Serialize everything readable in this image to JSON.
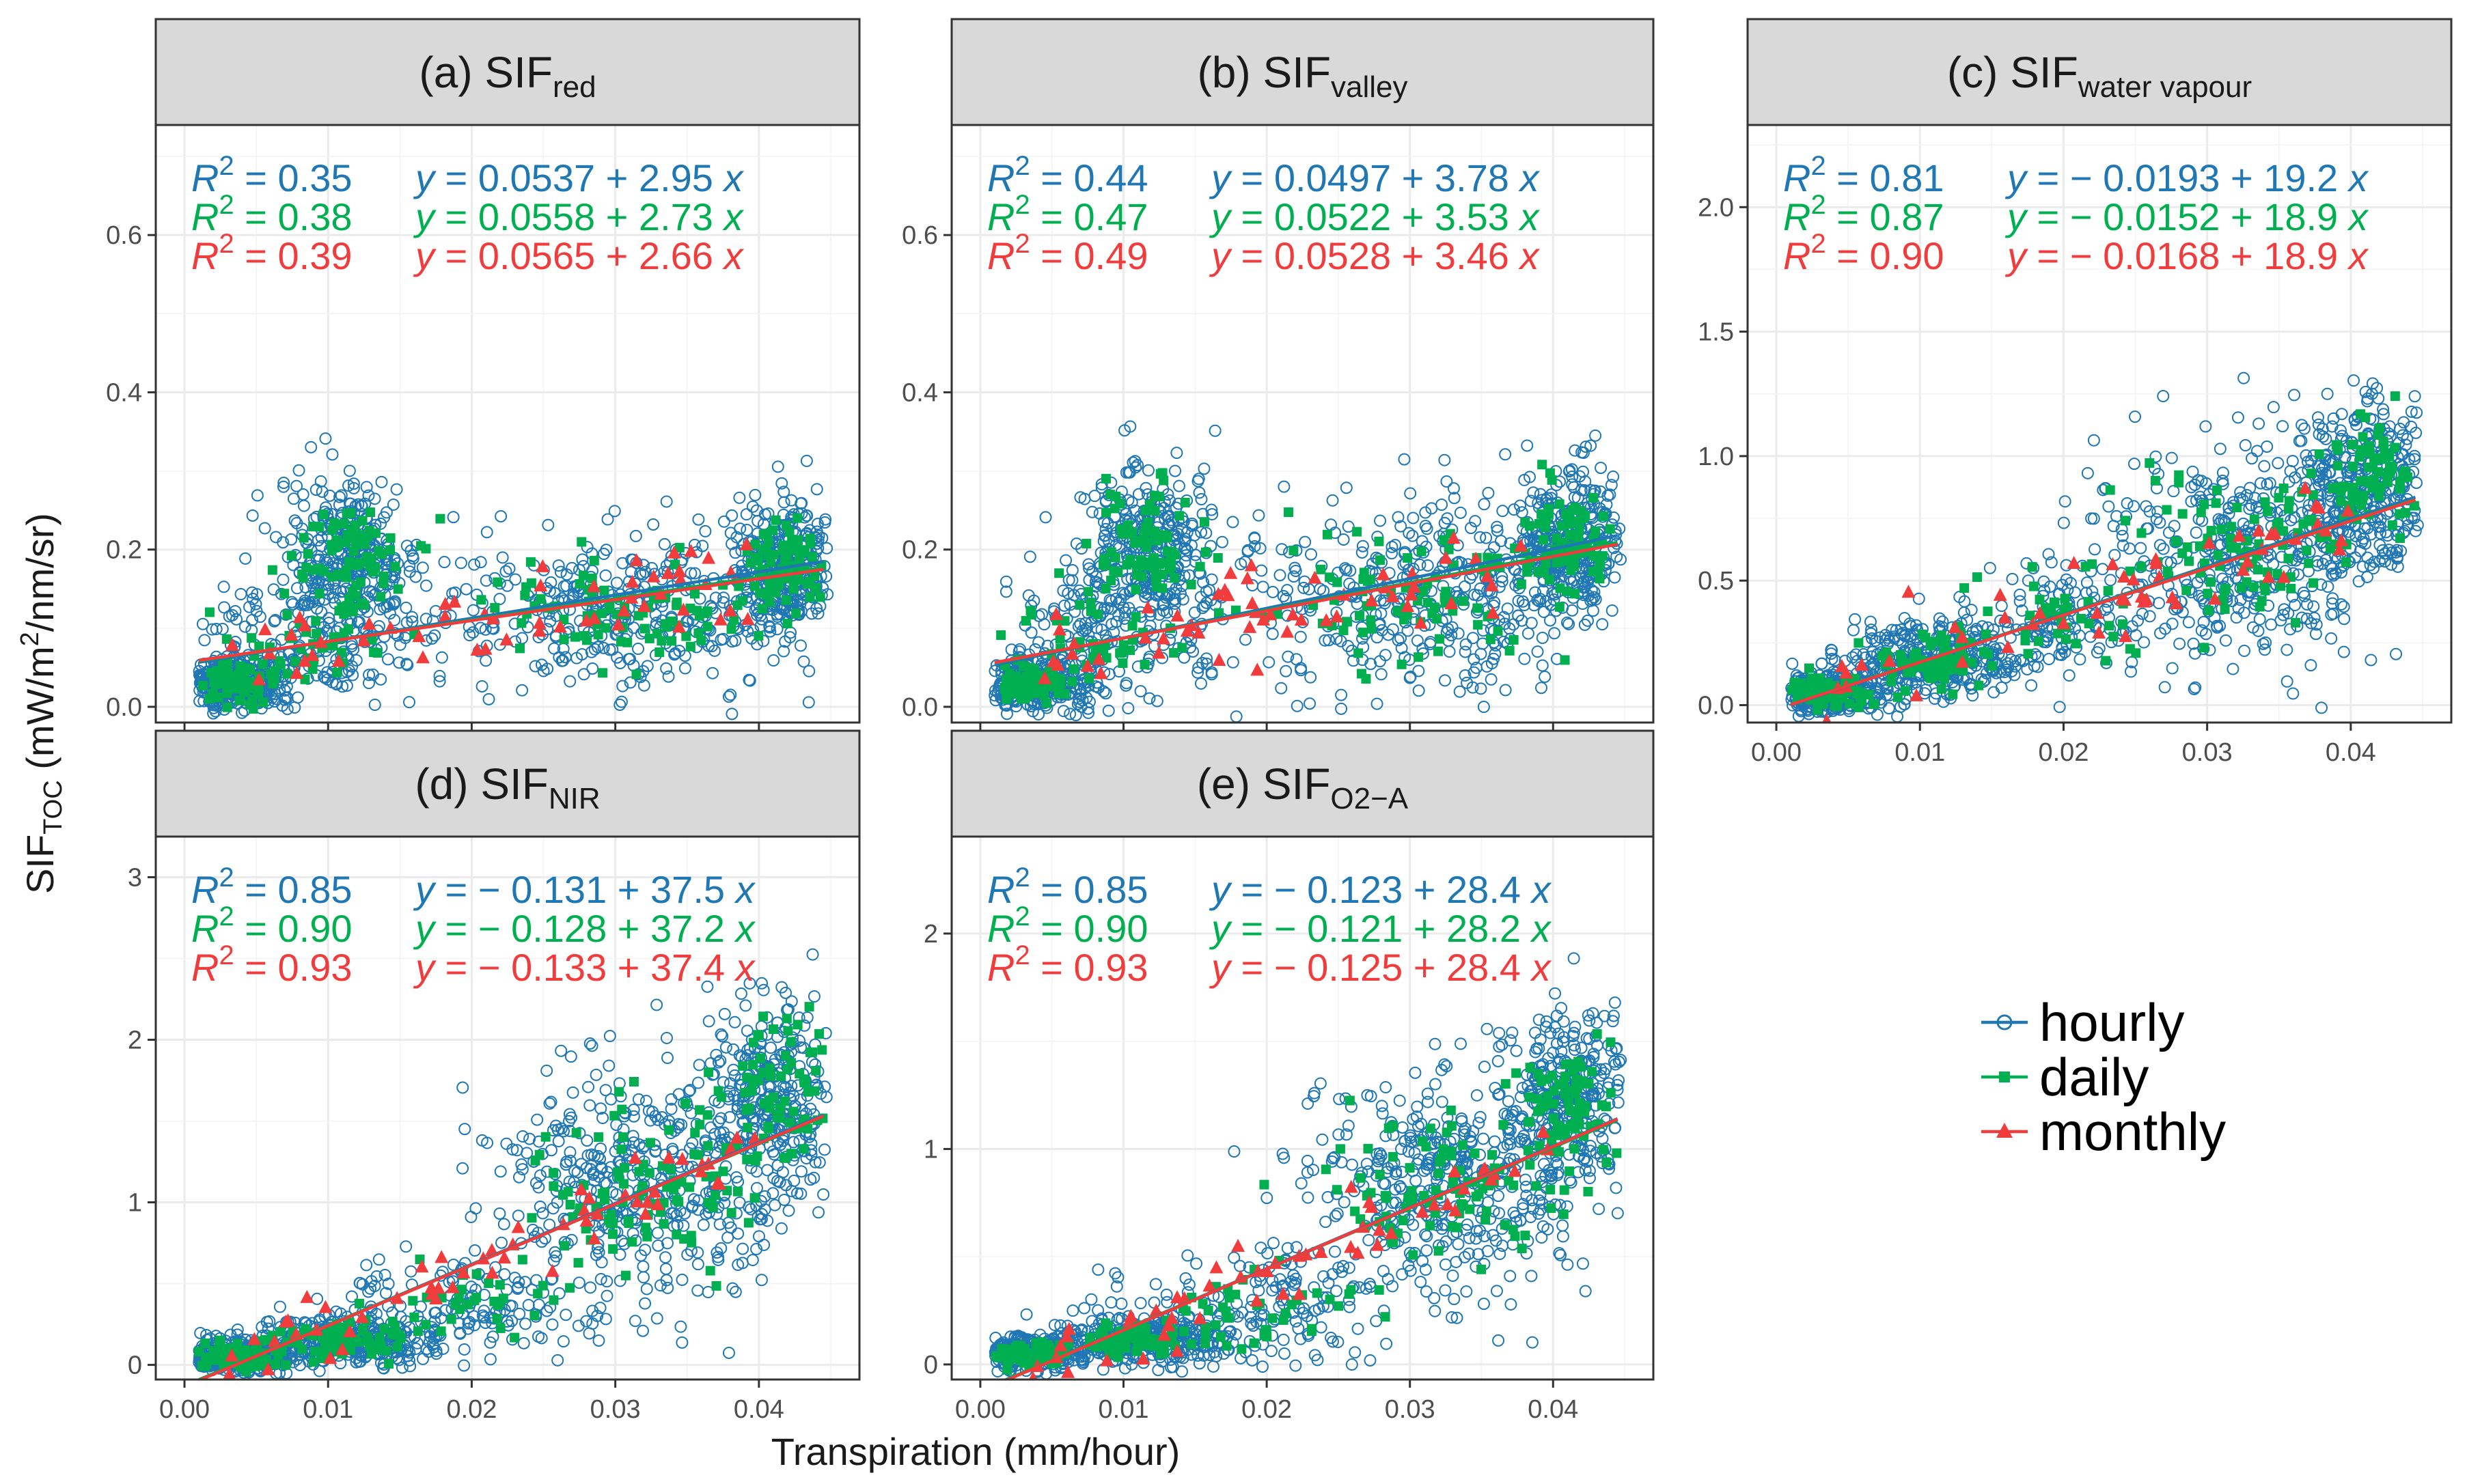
{
  "chart_data": {
    "type": "scatter",
    "xlabel": "Transpiration (mm/hour)",
    "ylabel_main": "SIF",
    "ylabel_sub": "TOC",
    "ylabel_unit_a": " (mW/m",
    "ylabel_unit_sup": "2",
    "ylabel_unit_b": "/nm/sr)",
    "xlim": [
      -0.002,
      0.047
    ],
    "xticks": [
      0.0,
      0.01,
      0.02,
      0.03,
      0.04
    ],
    "xtick_labels": [
      "0.00",
      "0.01",
      "0.02",
      "0.03",
      "0.04"
    ],
    "colors": {
      "hourly": "#1f77b4",
      "daily": "#00b050",
      "monthly": "#f03c3c"
    },
    "legend": {
      "position": "right",
      "entries": [
        {
          "name": "hourly",
          "marker": "open-circle",
          "color": "#1f77b4"
        },
        {
          "name": "daily",
          "marker": "square",
          "color": "#00b050"
        },
        {
          "name": "monthly",
          "marker": "triangle",
          "color": "#f03c3c"
        }
      ]
    },
    "panels": [
      {
        "id": "a",
        "title_prefix": "(a) SIF",
        "title_sub": "red",
        "ylim": [
          -0.02,
          0.74
        ],
        "yticks": [
          0.0,
          0.2,
          0.4,
          0.6
        ],
        "ytick_labels": [
          "0.0",
          "0.2",
          "0.4",
          "0.6"
        ],
        "regressions": [
          {
            "series": "hourly",
            "r2": "0.35",
            "equation": "y = 0.0537 + 2.95 x",
            "r2_text": "= 0.35",
            "eq_text": "= 0.0537 + 2.95",
            "intercept": 0.0537,
            "slope": 2.95
          },
          {
            "series": "daily",
            "r2": "0.38",
            "equation": "y = 0.0558 + 2.73 x",
            "r2_text": "= 0.38",
            "eq_text": "= 0.0558 + 2.73",
            "intercept": 0.0558,
            "slope": 2.73
          },
          {
            "series": "monthly",
            "r2": "0.39",
            "equation": "y = 0.0565 + 2.66 x",
            "r2_text": "= 0.39",
            "eq_text": "= 0.0565 + 2.66",
            "intercept": 0.0565,
            "slope": 2.66
          }
        ],
        "clusters": [
          {
            "x": 0.0035,
            "y": 0.03,
            "sx": 0.002,
            "sy": 0.018,
            "n": 320
          },
          {
            "x": 0.0115,
            "y": 0.19,
            "sx": 0.0025,
            "sy": 0.05,
            "n": 320
          },
          {
            "x": 0.0085,
            "y": 0.08,
            "sx": 0.004,
            "sy": 0.04,
            "n": 150
          },
          {
            "x": 0.031,
            "y": 0.12,
            "sx": 0.007,
            "sy": 0.05,
            "n": 380
          },
          {
            "x": 0.042,
            "y": 0.18,
            "sx": 0.002,
            "sy": 0.04,
            "n": 320
          }
        ]
      },
      {
        "id": "b",
        "title_prefix": "(b) SIF",
        "title_sub": "valley",
        "ylim": [
          -0.02,
          0.74
        ],
        "yticks": [
          0.0,
          0.2,
          0.4,
          0.6
        ],
        "ytick_labels": [
          "0.0",
          "0.2",
          "0.4",
          "0.6"
        ],
        "regressions": [
          {
            "series": "hourly",
            "r2": "0.44",
            "equation": "y = 0.0497 + 3.78 x",
            "r2_text": "= 0.44",
            "eq_text": "= 0.0497 + 3.78",
            "intercept": 0.0497,
            "slope": 3.78
          },
          {
            "series": "daily",
            "r2": "0.47",
            "equation": "y = 0.0522 + 3.53 x",
            "r2_text": "= 0.47",
            "eq_text": "= 0.0522 + 3.53",
            "intercept": 0.0522,
            "slope": 3.53
          },
          {
            "series": "monthly",
            "r2": "0.49",
            "equation": "y = 0.0528 + 3.46 x",
            "r2_text": "= 0.49",
            "eq_text": "= 0.0528 + 3.46",
            "intercept": 0.0528,
            "slope": 3.46
          }
        ],
        "clusters": [
          {
            "x": 0.0035,
            "y": 0.03,
            "sx": 0.002,
            "sy": 0.018,
            "n": 320
          },
          {
            "x": 0.0115,
            "y": 0.2,
            "sx": 0.0025,
            "sy": 0.055,
            "n": 320
          },
          {
            "x": 0.0085,
            "y": 0.09,
            "sx": 0.004,
            "sy": 0.045,
            "n": 150
          },
          {
            "x": 0.031,
            "y": 0.14,
            "sx": 0.007,
            "sy": 0.06,
            "n": 380
          },
          {
            "x": 0.041,
            "y": 0.21,
            "sx": 0.002,
            "sy": 0.05,
            "n": 320
          }
        ]
      },
      {
        "id": "c",
        "title_prefix": "(c) SIF",
        "title_sub": "water vapour",
        "ylim": [
          -0.07,
          2.33
        ],
        "yticks": [
          0.0,
          0.5,
          1.0,
          1.5,
          2.0
        ],
        "ytick_labels": [
          "0.0",
          "0.5",
          "1.0",
          "1.5",
          "2.0"
        ],
        "regressions": [
          {
            "series": "hourly",
            "r2": "0.81",
            "equation": "y = − 0.0193 + 19.2 x",
            "r2_text": "= 0.81",
            "eq_text": "= − 0.0193 + 19.2",
            "intercept": -0.0193,
            "slope": 19.2
          },
          {
            "series": "daily",
            "r2": "0.87",
            "equation": "y = − 0.0152 + 18.9 x",
            "r2_text": "= 0.87",
            "eq_text": "= − 0.0152 + 18.9",
            "intercept": -0.0152,
            "slope": 18.9
          },
          {
            "series": "monthly",
            "r2": "0.90",
            "equation": "y = − 0.0168 + 18.9 x",
            "r2_text": "= 0.90",
            "eq_text": "= − 0.0168 + 18.9",
            "intercept": -0.0168,
            "slope": 18.9
          }
        ],
        "clusters": [
          {
            "x": 0.0035,
            "y": 0.05,
            "sx": 0.002,
            "sy": 0.05,
            "n": 320
          },
          {
            "x": 0.011,
            "y": 0.18,
            "sx": 0.003,
            "sy": 0.08,
            "n": 300
          },
          {
            "x": 0.02,
            "y": 0.35,
            "sx": 0.004,
            "sy": 0.12,
            "n": 150
          },
          {
            "x": 0.032,
            "y": 0.62,
            "sx": 0.005,
            "sy": 0.22,
            "n": 380
          },
          {
            "x": 0.041,
            "y": 0.88,
            "sx": 0.0025,
            "sy": 0.18,
            "n": 320
          }
        ]
      },
      {
        "id": "d",
        "title_prefix": "(d) SIF",
        "title_sub": "NIR",
        "ylim": [
          -0.09,
          3.25
        ],
        "yticks": [
          0,
          1,
          2,
          3
        ],
        "ytick_labels": [
          "0",
          "1",
          "2",
          "3"
        ],
        "regressions": [
          {
            "series": "hourly",
            "r2": "0.85",
            "equation": "y = − 0.131 + 37.5 x",
            "r2_text": "= 0.85",
            "eq_text": "= − 0.131 + 37.5",
            "intercept": -0.131,
            "slope": 37.5
          },
          {
            "series": "daily",
            "r2": "0.90",
            "equation": "y = − 0.128 + 37.2 x",
            "r2_text": "= 0.90",
            "eq_text": "= − 0.128 + 37.2",
            "intercept": -0.128,
            "slope": 37.2
          },
          {
            "series": "monthly",
            "r2": "0.93",
            "equation": "y = − 0.133 + 37.4 x",
            "r2_text": "= 0.93",
            "eq_text": "= − 0.133 + 37.4",
            "intercept": -0.133,
            "slope": 37.4
          }
        ],
        "clusters": [
          {
            "x": 0.0035,
            "y": 0.05,
            "sx": 0.002,
            "sy": 0.05,
            "n": 320
          },
          {
            "x": 0.011,
            "y": 0.15,
            "sx": 0.003,
            "sy": 0.08,
            "n": 300
          },
          {
            "x": 0.02,
            "y": 0.35,
            "sx": 0.005,
            "sy": 0.18,
            "n": 150
          },
          {
            "x": 0.032,
            "y": 1.1,
            "sx": 0.005,
            "sy": 0.35,
            "n": 380
          },
          {
            "x": 0.041,
            "y": 1.65,
            "sx": 0.0025,
            "sy": 0.3,
            "n": 320
          }
        ]
      },
      {
        "id": "e",
        "title_prefix": "(e) SIF",
        "title_sub": "O2−A",
        "ylim": [
          -0.07,
          2.45
        ],
        "yticks": [
          0,
          1,
          2
        ],
        "ytick_labels": [
          "0",
          "1",
          "2"
        ],
        "regressions": [
          {
            "series": "hourly",
            "r2": "0.85",
            "equation": "y = − 0.123 + 28.4 x",
            "r2_text": "= 0.85",
            "eq_text": "= − 0.123 + 28.4",
            "intercept": -0.123,
            "slope": 28.4
          },
          {
            "series": "daily",
            "r2": "0.90",
            "equation": "y = − 0.121 + 28.2 x",
            "r2_text": "= 0.90",
            "eq_text": "= − 0.121 + 28.2",
            "intercept": -0.121,
            "slope": 28.2
          },
          {
            "series": "monthly",
            "r2": "0.93",
            "equation": "y = − 0.125 + 28.4 x",
            "r2_text": "= 0.93",
            "eq_text": "= − 0.125 + 28.4",
            "intercept": -0.125,
            "slope": 28.4
          }
        ],
        "clusters": [
          {
            "x": 0.0035,
            "y": 0.05,
            "sx": 0.002,
            "sy": 0.04,
            "n": 320
          },
          {
            "x": 0.011,
            "y": 0.12,
            "sx": 0.003,
            "sy": 0.06,
            "n": 300
          },
          {
            "x": 0.02,
            "y": 0.28,
            "sx": 0.005,
            "sy": 0.14,
            "n": 150
          },
          {
            "x": 0.032,
            "y": 0.82,
            "sx": 0.005,
            "sy": 0.26,
            "n": 380
          },
          {
            "x": 0.041,
            "y": 1.22,
            "sx": 0.0025,
            "sy": 0.22,
            "n": 320
          }
        ]
      }
    ]
  }
}
